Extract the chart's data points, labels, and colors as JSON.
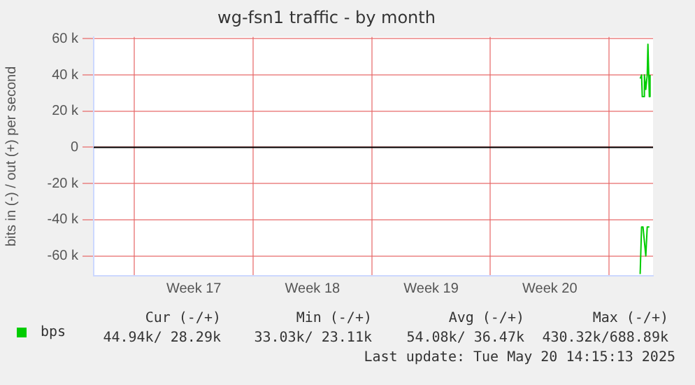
{
  "chart_data": {
    "type": "line",
    "title": "wg-fsn1 traffic - by month",
    "ylabel": "bits in (-) / out (+) per second",
    "xlim": [
      "2025-04-17T14:15",
      "2025-05-20T14:15"
    ],
    "xticks": [
      {
        "value": "2025-04-20",
        "label": null
      },
      {
        "value": "2025-04-23T12:00",
        "label": "Week 17"
      },
      {
        "value": "2025-04-27",
        "label": null
      },
      {
        "value": "2025-04-30T12:00",
        "label": "Week 18"
      },
      {
        "value": "2025-05-04",
        "label": null
      },
      {
        "value": "2025-05-07T12:00",
        "label": "Week 19"
      },
      {
        "value": "2025-05-11",
        "label": null
      },
      {
        "value": "2025-05-14T12:00",
        "label": "Week 20"
      },
      {
        "value": "2025-05-18",
        "label": null
      }
    ],
    "ylim": [
      -71000,
      61000
    ],
    "yticks": [
      {
        "value": -60000,
        "label": "-60 k"
      },
      {
        "value": -40000,
        "label": "-40 k"
      },
      {
        "value": -20000,
        "label": "-20 k"
      },
      0,
      {
        "value": 20000,
        "label": "20 k"
      },
      {
        "value": 40000,
        "label": "40 k"
      },
      {
        "value": 60000,
        "label": "60 k"
      }
    ],
    "grid": true,
    "marker": "none",
    "legend": "bottom left",
    "ref_lines": [
      {
        "axis": "y",
        "value": 0,
        "color": "#000000"
      }
    ],
    "series": [
      {
        "name": "bps",
        "color": "#00cc00",
        "x": [
          "2025-05-19T20:00",
          "2025-05-19T22:00",
          "2025-05-19T23:00",
          "2025-05-20T01:00",
          "2025-05-20T02:00",
          "2025-05-20T04:00",
          "2025-05-20T06:00",
          "2025-05-20T07:00",
          "2025-05-20T09:00",
          "2025-05-20T10:00"
        ],
        "values": [
          38000,
          40000,
          28000,
          28000,
          40000,
          32000,
          40000,
          57000,
          28000,
          40000
        ]
      },
      {
        "color": "#00cc00",
        "x": [
          "2025-05-19T20:00",
          "2025-05-19T22:00",
          "2025-05-20T00:00",
          "2025-05-20T04:00",
          "2025-05-20T06:00",
          "2025-05-20T09:00"
        ],
        "values": [
          -70000,
          -44000,
          -44000,
          -60000,
          -44000,
          -44000
        ]
      }
    ],
    "annotations": [
      "Cur (-/+)",
      "Min (-/+)",
      "Avg (-/+)",
      "Max (-/+)",
      "44.94k/ 28.29k",
      "33.03k/ 23.11k",
      "54.08k/ 36.47k",
      "430.32k/688.89k",
      "Last update: Tue May 20 14:15:13 2025"
    ]
  }
}
